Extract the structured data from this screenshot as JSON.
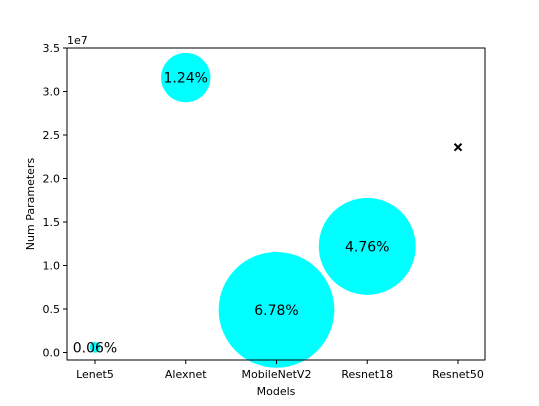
{
  "chart_data": {
    "type": "scatter",
    "xlabel": "Models",
    "ylabel": "Num Parameters",
    "y_offset_label": "1e7",
    "categories": [
      "Lenet5",
      "Alexnet",
      "MobileNetV2",
      "Resnet18",
      "Resnet50"
    ],
    "y_ticks": [
      "0.0",
      "0.5",
      "1.0",
      "1.5",
      "2.0",
      "2.5",
      "3.0",
      "3.5"
    ],
    "ylim": [
      -0.1,
      3.5
    ],
    "y_scale_multiplier": 10000000,
    "points": [
      {
        "model": "Lenet5",
        "params": 0.06,
        "label": "0.06%",
        "marker": "bubble",
        "size_percent": 0.06
      },
      {
        "model": "Alexnet",
        "params": 3.16,
        "label": "1.24%",
        "marker": "bubble",
        "size_percent": 1.24
      },
      {
        "model": "MobileNetV2",
        "params": 0.49,
        "label": "6.78%",
        "marker": "bubble",
        "size_percent": 6.78
      },
      {
        "model": "Resnet18",
        "params": 1.22,
        "label": "4.76%",
        "marker": "bubble",
        "size_percent": 4.76
      },
      {
        "model": "Resnet50",
        "params": 2.36,
        "label": "",
        "marker": "x"
      }
    ],
    "colors": {
      "bubble": "#00ffff",
      "axis": "#000000",
      "x_marker": "#000000"
    },
    "grid": false,
    "legend": "none"
  }
}
